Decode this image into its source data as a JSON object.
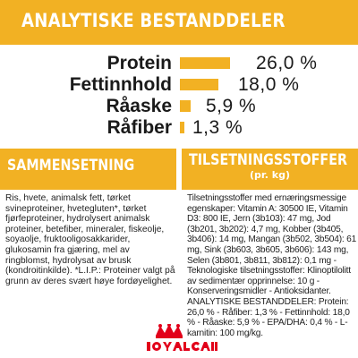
{
  "header": {
    "title": "ANALYTISKE BESTANDDELER"
  },
  "analysis": [
    {
      "label": "Protein",
      "value": "26,0 %",
      "amount": 26.0
    },
    {
      "label": "Fettinnhold",
      "value": "18,0 %",
      "amount": 18.0
    },
    {
      "label": "Råaske",
      "value": "5,9 %",
      "amount": 5.9
    },
    {
      "label": "Råfiber",
      "value": "1,3 %",
      "amount": 1.3
    }
  ],
  "composition": {
    "title": "SAMMENSETNING",
    "text": "Ris, hvete, animalsk fett, tørket svineproteiner, hvetegluten*, tørket fjørfeproteiner, hydrolysert animalsk proteiner, betefiber, mineraler, fiskeolje, soyaolje, fruktooligosakkarider, glukosamin fra gjæring, mel av ringblomst, hydrolysat av brusk (kondroitinkilde). *L.I.P.: Proteiner valgt på grunn av deres svært høye fordøyelighet."
  },
  "additives": {
    "title": "TILSETNINGSSTOFFER",
    "subtitle": "(pr. kg)",
    "text": "Tilsetningsstoffer med ernæringsmessige egenskaper: Vitamin A: 30500 IE, Vitamin D3: 800 IE, Jern (3b103): 47 mg, Jod (3b201, 3b202): 4,7 mg, Kobber (3b405, 3b406): 14 mg, Mangan (3b502, 3b504): 61 mg, Sink (3b603, 3b605, 3b606): 143 mg, Selen (3b801, 3b811, 3b812): 0,1 mg - Teknologiske tilsetningsstoffer: Klinoptilolitt av sedimentær opprinnelse: 10 g - Konserveringsmidler - Antioksidanter. ANALYTISKE BESTANDDELER: Protein: 26,0 % - Råfiber: 1,3 % - Fettinnhold: 18,0 % - Råaske: 5,9 % - EPA/DHA: 0,4 % - L-karnitin: 100 mg/kg."
  },
  "brand": {
    "name": "ROYAL CANIN",
    "color": "#e2001a"
  },
  "colors": {
    "accent": "#f2b123"
  }
}
